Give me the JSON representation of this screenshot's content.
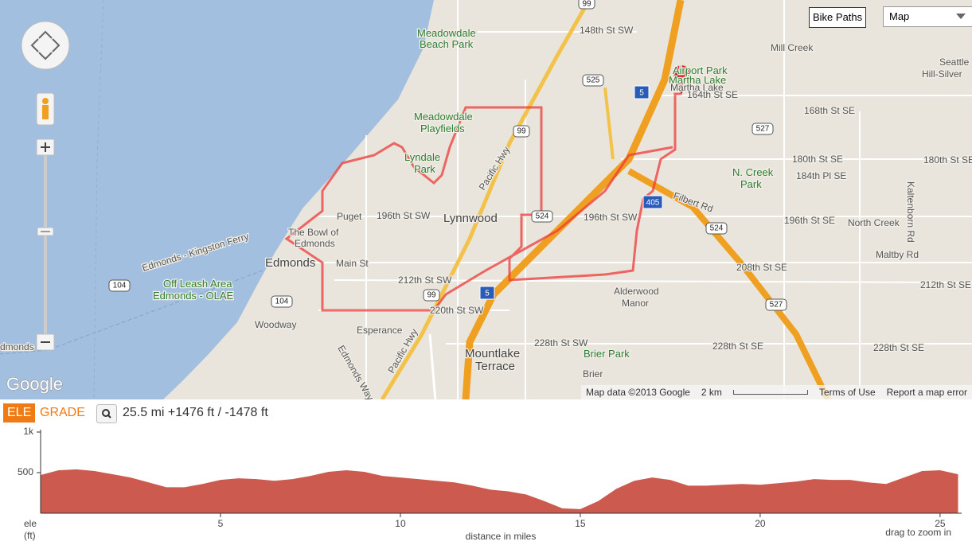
{
  "map": {
    "labels": [
      "Meadowdale",
      "Beach Park",
      "Meadowdale",
      "Playfields",
      "Lyndale",
      "Park",
      "Lynnwood",
      "196th St SW",
      "196th St SW",
      "Puget",
      "The Bowl of",
      "Edmonds",
      "Edmonds",
      "Main St",
      "Off Leash Area",
      "Edmonds - OLAE",
      "212th St SW",
      "220th St SW",
      "Woodway",
      "Esperance",
      "Mountlake",
      "Terrace",
      "228th St SW",
      "Brier Park",
      "Brier",
      "Alderwood",
      "Manor",
      "Martha Lake",
      "Airport Park",
      "Martha Lake",
      "Mill Creek",
      "N. Creek",
      "Park",
      "North Creek",
      "Seattle",
      "Hill-Silver",
      "148th St SW",
      "164th St SE",
      "168th St SE",
      "180th St SE",
      "184th Pl SE",
      "196th St SE",
      "208th St SE",
      "212th St SE",
      "228th St SE",
      "228th St SE",
      "180th St SE",
      "Maltby Rd",
      "Edmonds - Kingston Ferry",
      "Filbert Rd",
      "Pacific Hwy",
      "Pacific Hwy",
      "Edmonds Way",
      "Kaltenborn Rd",
      "dmonds"
    ],
    "shields": [
      "99",
      "525",
      "5",
      "527",
      "524",
      "104",
      "104",
      "99",
      "5",
      "405",
      "524",
      "527",
      "99"
    ],
    "controls": {
      "bike_paths": "Bike Paths",
      "map_type": "Map"
    },
    "attribution": {
      "logo": "Google",
      "data": "Map data ©2013 Google",
      "scale": "2 km",
      "terms": "Terms of Use",
      "report": "Report a map error"
    }
  },
  "profile": {
    "tabs": [
      "ELE",
      "GRADE"
    ],
    "summary": "25.5 mi +1476 ft / -1478 ft",
    "hint": "drag to zoom in"
  },
  "chart_data": {
    "type": "area",
    "color": "#cc5a4f",
    "x_label": "distance in miles",
    "y_label": "ele",
    "y_unit": "(ft)",
    "x": [
      0,
      0.5,
      1,
      1.5,
      2,
      2.5,
      3,
      3.5,
      4,
      4.5,
      5,
      5.5,
      6,
      6.5,
      7,
      7.5,
      8,
      8.5,
      9,
      9.5,
      10,
      10.5,
      11,
      11.5,
      12,
      12.5,
      13,
      13.5,
      14,
      14.5,
      15,
      15.5,
      16,
      16.5,
      17,
      17.5,
      18,
      18.5,
      19,
      19.5,
      20,
      20.5,
      21,
      21.5,
      22,
      22.5,
      23,
      23.5,
      24,
      24.5,
      25,
      25.5
    ],
    "values": [
      470,
      530,
      540,
      520,
      480,
      440,
      380,
      320,
      320,
      360,
      410,
      430,
      420,
      400,
      420,
      460,
      510,
      530,
      510,
      460,
      440,
      420,
      400,
      380,
      340,
      290,
      270,
      230,
      150,
      60,
      50,
      150,
      300,
      400,
      440,
      410,
      340,
      340,
      350,
      360,
      350,
      370,
      390,
      420,
      410,
      410,
      380,
      360,
      440,
      520,
      530,
      480
    ],
    "xlim": [
      0,
      25.6
    ],
    "ylim": [
      0,
      1000
    ],
    "xticks": [
      5,
      10,
      15,
      20,
      25
    ],
    "yticks": [
      500,
      {
        "value": 1000,
        "label": "1k"
      }
    ]
  }
}
